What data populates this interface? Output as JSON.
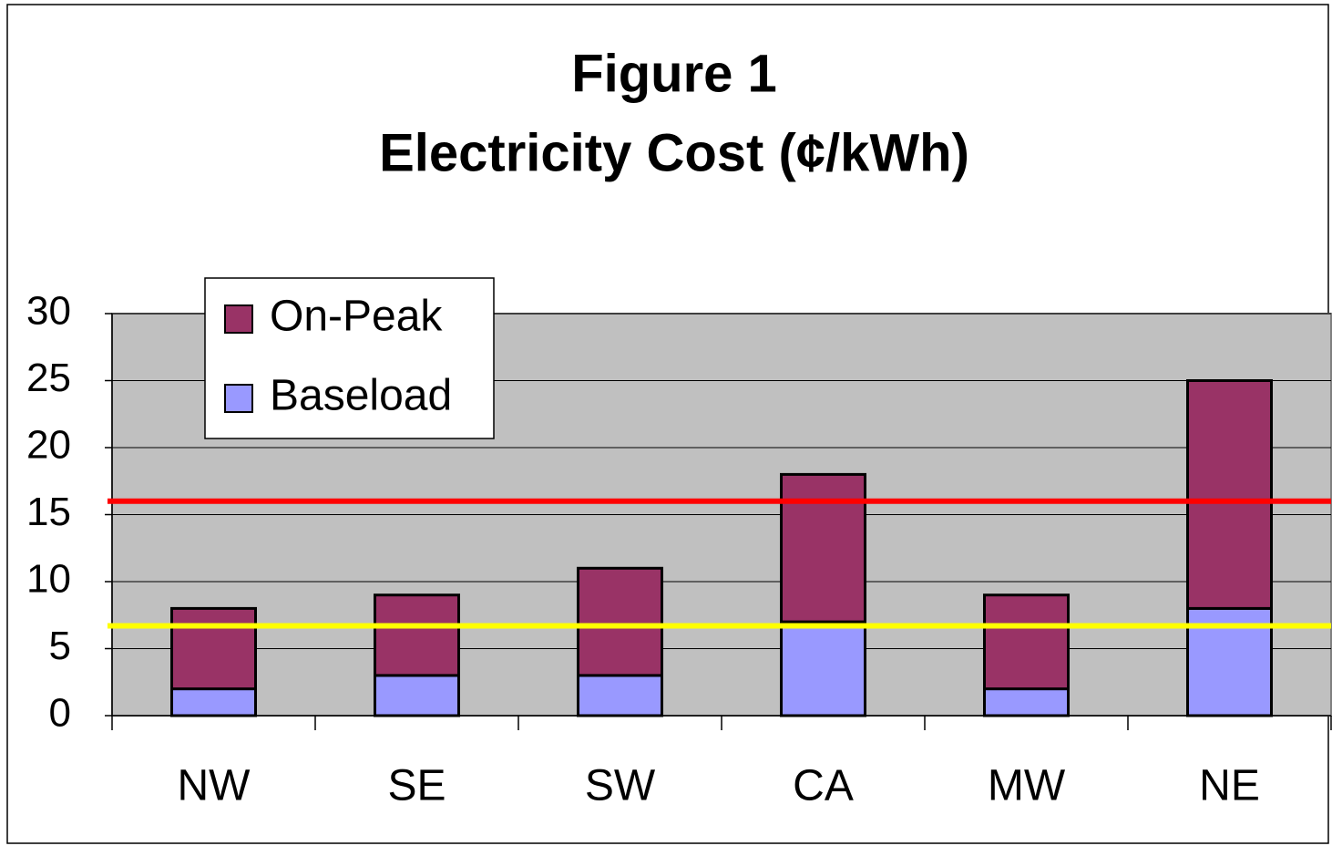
{
  "chart_data": {
    "type": "stacked_bar",
    "title": [
      "Figure 1",
      "Electricity Cost (¢/kWh)"
    ],
    "categories": [
      "NW",
      "SE",
      "SW",
      "CA",
      "MW",
      "NE"
    ],
    "series": [
      {
        "name": "Baseload",
        "color": "#9999ff",
        "values": [
          2,
          3,
          3,
          7,
          2,
          8
        ]
      },
      {
        "name": "On-Peak",
        "color": "#993366",
        "values": [
          6,
          6,
          8,
          11,
          7,
          17
        ]
      }
    ],
    "reference_lines": [
      {
        "value": 16,
        "color": "#ff0000"
      },
      {
        "value": 6.7,
        "color": "#ffff00"
      }
    ],
    "ylim": [
      0,
      30
    ],
    "yticks": [
      0,
      5,
      10,
      15,
      20,
      25,
      30
    ],
    "grid": true,
    "legend": "top-left"
  }
}
